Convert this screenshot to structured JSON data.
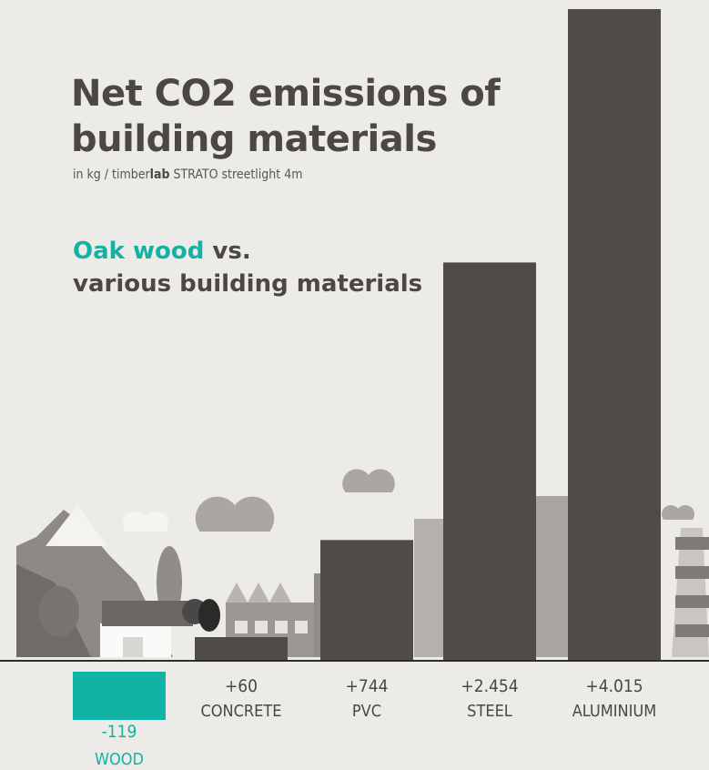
{
  "title_lines": [
    "Net CO2 emissions of",
    "building materials"
  ],
  "subtitle": {
    "prefix": "in kg / timber",
    "brand_bold": "lab",
    "suffix": " STRATO streetlight 4m"
  },
  "comparison": {
    "highlight": "Oak wood",
    "rest_line1": " vs.",
    "line2": "various building materials"
  },
  "colors": {
    "background": "#ecebe7",
    "bar": "#4f4c48",
    "accent": "#12b3a4",
    "text": "#4a4744",
    "baseline": "#2f2d2b"
  },
  "chart_data": {
    "type": "bar",
    "categories": [
      "WOOD",
      "CONCRETE",
      "PVC",
      "STEEL",
      "ALUMINIUM"
    ],
    "values": [
      -119,
      60,
      744,
      2454,
      4015
    ],
    "value_labels": [
      "-119",
      "+60",
      "+744",
      "+2.454",
      "+4.015"
    ],
    "highlight_index": 0,
    "unit": "kg",
    "grid": false,
    "legend": "none"
  }
}
